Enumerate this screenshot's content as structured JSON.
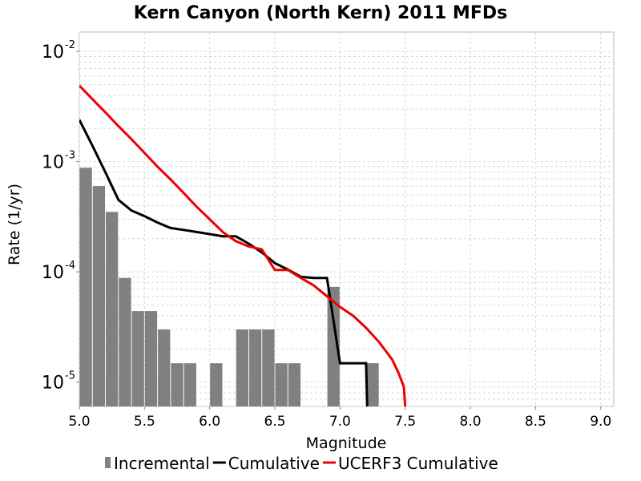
{
  "chart_data": {
    "type": "bar+line",
    "title": "Kern Canyon (North Kern) 2011 MFDs",
    "xlabel": "Magnitude",
    "ylabel": "Rate (1/yr)",
    "xlim": [
      5.0,
      9.1
    ],
    "ylim": [
      6e-06,
      0.015
    ],
    "yscale": "log",
    "grid": true,
    "legend_position": "bottom",
    "x_ticks": [
      "5.0",
      "5.5",
      "6.0",
      "6.5",
      "7.0",
      "7.5",
      "8.0",
      "8.5",
      "9.0"
    ],
    "y_ticks": [
      {
        "base": "10",
        "exp": "-2"
      },
      {
        "base": "10",
        "exp": "-3"
      },
      {
        "base": "10",
        "exp": "-4"
      },
      {
        "base": "10",
        "exp": "-5"
      }
    ],
    "series": [
      {
        "name": "Incremental",
        "kind": "bar",
        "color": "#808080",
        "x": [
          5.05,
          5.15,
          5.25,
          5.35,
          5.45,
          5.55,
          5.65,
          5.75,
          5.85,
          6.05,
          6.25,
          6.35,
          6.45,
          6.55,
          6.65,
          6.95,
          7.25
        ],
        "values": [
          0.00088,
          0.0006,
          0.00035,
          8.8e-05,
          4.4e-05,
          4.4e-05,
          3e-05,
          1.48e-05,
          1.48e-05,
          1.48e-05,
          3e-05,
          3e-05,
          3e-05,
          1.48e-05,
          1.48e-05,
          7.3e-05,
          1.48e-05
        ]
      },
      {
        "name": "Cumulative",
        "kind": "line",
        "color": "#000000",
        "x": [
          5.0,
          5.1,
          5.2,
          5.3,
          5.4,
          5.5,
          5.6,
          5.7,
          5.8,
          5.9,
          6.0,
          6.1,
          6.2,
          6.3,
          6.4,
          6.5,
          6.6,
          6.7,
          6.8,
          6.9,
          7.0,
          7.1,
          7.2,
          7.21
        ],
        "values": [
          0.0024,
          0.0014,
          0.0008,
          0.00045,
          0.00036,
          0.00032,
          0.00028,
          0.00025,
          0.00024,
          0.00023,
          0.00022,
          0.00021,
          0.00021,
          0.00018,
          0.00015,
          0.00012,
          0.000105,
          9e-05,
          8.8e-05,
          8.8e-05,
          1.48e-05,
          1.48e-05,
          1.48e-05,
          5e-06
        ]
      },
      {
        "name": "UCERF3 Cumulative",
        "kind": "line",
        "color": "#ee0000",
        "x": [
          5.0,
          5.1,
          5.2,
          5.3,
          5.4,
          5.5,
          5.6,
          5.7,
          5.8,
          5.9,
          6.0,
          6.1,
          6.2,
          6.3,
          6.4,
          6.5,
          6.6,
          6.7,
          6.8,
          6.9,
          7.0,
          7.1,
          7.2,
          7.3,
          7.4,
          7.45,
          7.49,
          7.5
        ],
        "values": [
          0.0049,
          0.0037,
          0.0028,
          0.0021,
          0.0016,
          0.0012,
          0.0009,
          0.00069,
          0.00052,
          0.00039,
          0.0003,
          0.00023,
          0.00019,
          0.00017,
          0.00016,
          0.000104,
          0.000104,
          8.8e-05,
          7.5e-05,
          6e-05,
          4.8e-05,
          4e-05,
          3.1e-05,
          2.3e-05,
          1.6e-05,
          1.2e-05,
          9e-06,
          6e-06
        ]
      }
    ]
  }
}
